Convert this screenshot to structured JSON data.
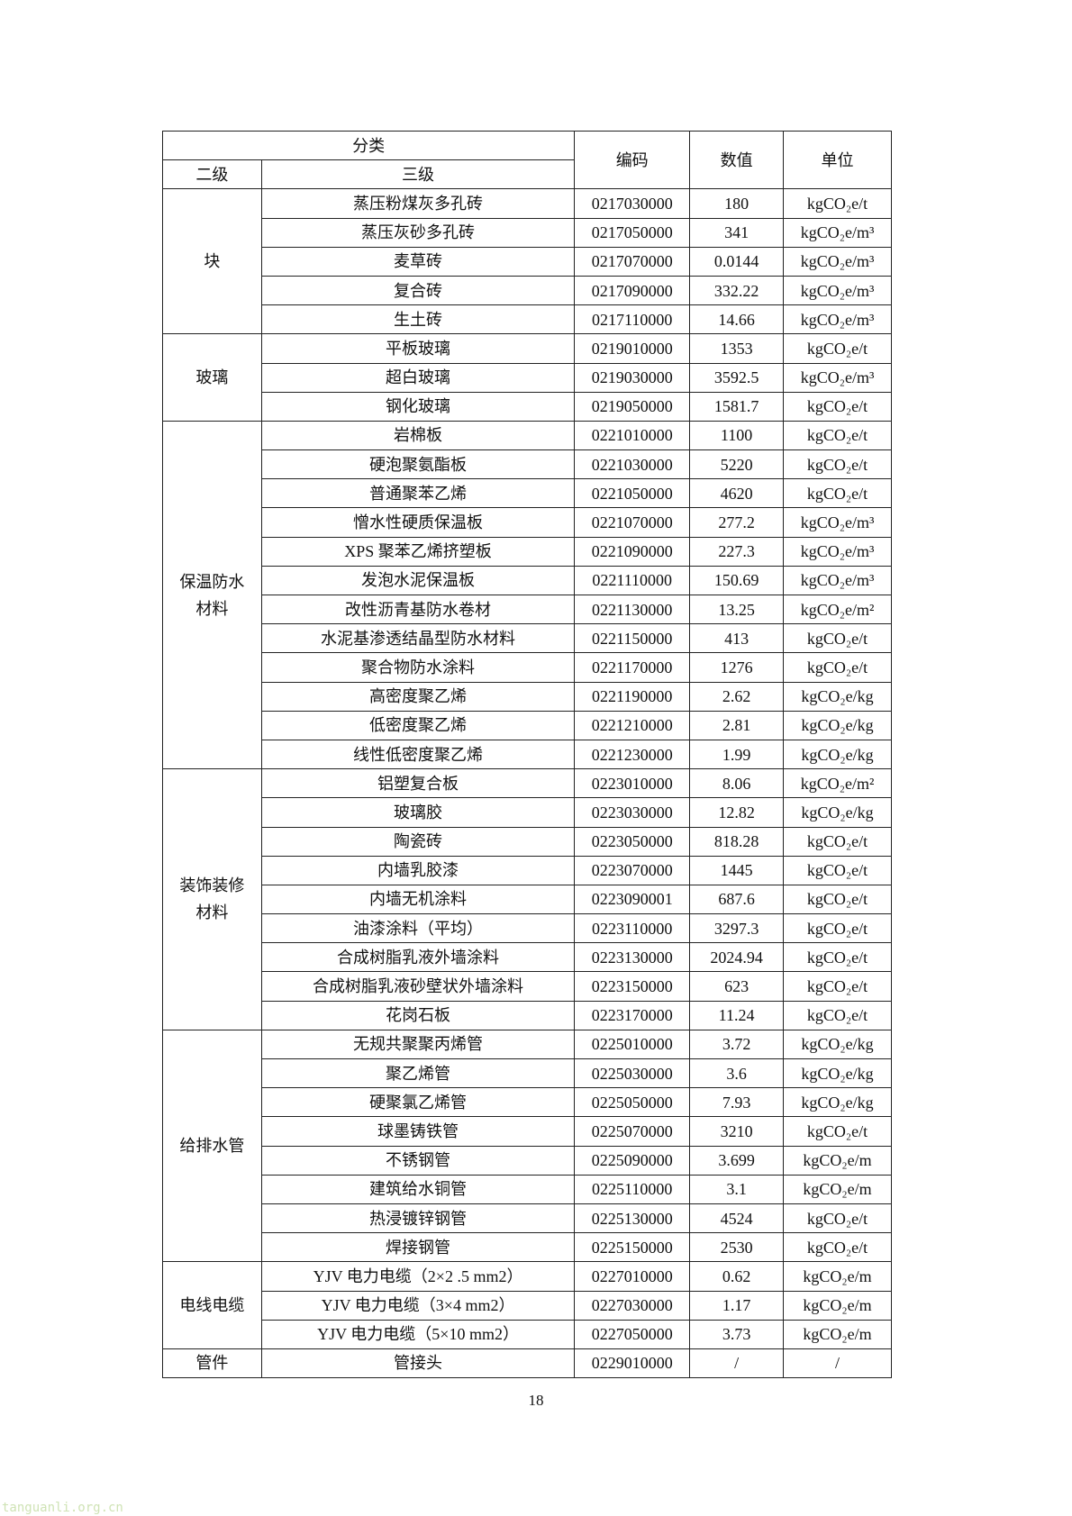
{
  "header": {
    "category": "分类",
    "level2": "二级",
    "level3": "三级",
    "code": "编码",
    "value": "数值",
    "unit": "单位"
  },
  "groups": [
    {
      "name": "块",
      "rows": [
        {
          "item": "蒸压粉煤灰多孔砖",
          "code": "0217030000",
          "value": "180",
          "unit": "kgCO₂e/t"
        },
        {
          "item": "蒸压灰砂多孔砖",
          "code": "0217050000",
          "value": "341",
          "unit": "kgCO₂e/m³"
        },
        {
          "item": "麦草砖",
          "code": "0217070000",
          "value": "0.0144",
          "unit": "kgCO₂e/m³"
        },
        {
          "item": "复合砖",
          "code": "0217090000",
          "value": "332.22",
          "unit": "kgCO₂e/m³"
        },
        {
          "item": "生土砖",
          "code": "0217110000",
          "value": "14.66",
          "unit": "kgCO₂e/m³"
        }
      ]
    },
    {
      "name": "玻璃",
      "rows": [
        {
          "item": "平板玻璃",
          "code": "0219010000",
          "value": "1353",
          "unit": "kgCO₂e/t"
        },
        {
          "item": "超白玻璃",
          "code": "0219030000",
          "value": "3592.5",
          "unit": "kgCO₂e/m³"
        },
        {
          "item": "钢化玻璃",
          "code": "0219050000",
          "value": "1581.7",
          "unit": "kgCO₂e/t"
        }
      ]
    },
    {
      "name": "保温防水材料",
      "rows": [
        {
          "item": "岩棉板",
          "code": "0221010000",
          "value": "1100",
          "unit": "kgCO₂e/t"
        },
        {
          "item": "硬泡聚氨酯板",
          "code": "0221030000",
          "value": "5220",
          "unit": "kgCO₂e/t"
        },
        {
          "item": "普通聚苯乙烯",
          "code": "0221050000",
          "value": "4620",
          "unit": "kgCO₂e/t"
        },
        {
          "item": "憎水性硬质保温板",
          "code": "0221070000",
          "value": "277.2",
          "unit": "kgCO₂e/m³"
        },
        {
          "item": "XPS 聚苯乙烯挤塑板",
          "code": "0221090000",
          "value": "227.3",
          "unit": "kgCO₂e/m³"
        },
        {
          "item": "发泡水泥保温板",
          "code": "0221110000",
          "value": "150.69",
          "unit": "kgCO₂e/m³"
        },
        {
          "item": "改性沥青基防水卷材",
          "code": "0221130000",
          "value": "13.25",
          "unit": "kgCO₂e/m²"
        },
        {
          "item": "水泥基渗透结晶型防水材料",
          "code": "0221150000",
          "value": "413",
          "unit": "kgCO₂e/t"
        },
        {
          "item": "聚合物防水涂料",
          "code": "0221170000",
          "value": "1276",
          "unit": "kgCO₂e/t"
        },
        {
          "item": "高密度聚乙烯",
          "code": "0221190000",
          "value": "2.62",
          "unit": "kgCO₂e/kg"
        },
        {
          "item": "低密度聚乙烯",
          "code": "0221210000",
          "value": "2.81",
          "unit": "kgCO₂e/kg"
        },
        {
          "item": "线性低密度聚乙烯",
          "code": "0221230000",
          "value": "1.99",
          "unit": "kgCO₂e/kg"
        }
      ]
    },
    {
      "name": "装饰装修材料",
      "rows": [
        {
          "item": "铝塑复合板",
          "code": "0223010000",
          "value": "8.06",
          "unit": "kgCO₂e/m²"
        },
        {
          "item": "玻璃胶",
          "code": "0223030000",
          "value": "12.82",
          "unit": "kgCO₂e/kg"
        },
        {
          "item": "陶瓷砖",
          "code": "0223050000",
          "value": "818.28",
          "unit": "kgCO₂e/t"
        },
        {
          "item": "内墙乳胶漆",
          "code": "0223070000",
          "value": "1445",
          "unit": "kgCO₂e/t"
        },
        {
          "item": "内墙无机涂料",
          "code": "0223090001",
          "value": "687.6",
          "unit": "kgCO₂e/t"
        },
        {
          "item": "油漆涂料（平均）",
          "code": "0223110000",
          "value": "3297.3",
          "unit": "kgCO₂e/t"
        },
        {
          "item": "合成树脂乳液外墙涂料",
          "code": "0223130000",
          "value": "2024.94",
          "unit": "kgCO₂e/t"
        },
        {
          "item": "合成树脂乳液砂壁状外墙涂料",
          "code": "0223150000",
          "value": "623",
          "unit": "kgCO₂e/t"
        },
        {
          "item": "花岗石板",
          "code": "0223170000",
          "value": "11.24",
          "unit": "kgCO₂e/t"
        }
      ]
    },
    {
      "name": "给排水管",
      "rows": [
        {
          "item": "无规共聚聚丙烯管",
          "code": "0225010000",
          "value": "3.72",
          "unit": "kgCO₂e/kg"
        },
        {
          "item": "聚乙烯管",
          "code": "0225030000",
          "value": "3.6",
          "unit": "kgCO₂e/kg"
        },
        {
          "item": "硬聚氯乙烯管",
          "code": "0225050000",
          "value": "7.93",
          "unit": "kgCO₂e/kg"
        },
        {
          "item": "球墨铸铁管",
          "code": "0225070000",
          "value": "3210",
          "unit": "kgCO₂e/t"
        },
        {
          "item": "不锈钢管",
          "code": "0225090000",
          "value": "3.699",
          "unit": "kgCO₂e/m"
        },
        {
          "item": "建筑给水铜管",
          "code": "0225110000",
          "value": "3.1",
          "unit": "kgCO₂e/m"
        },
        {
          "item": "热浸镀锌钢管",
          "code": "0225130000",
          "value": "4524",
          "unit": "kgCO₂e/t"
        },
        {
          "item": "焊接钢管",
          "code": "0225150000",
          "value": "2530",
          "unit": "kgCO₂e/t"
        }
      ]
    },
    {
      "name": "电线电缆",
      "rows": [
        {
          "item": "YJV 电力电缆（2×2 .5 mm2）",
          "code": "0227010000",
          "value": "0.62",
          "unit": "kgCO₂e/m"
        },
        {
          "item": "YJV 电力电缆（3×4 mm2）",
          "code": "0227030000",
          "value": "1.17",
          "unit": "kgCO₂e/m"
        },
        {
          "item": "YJV 电力电缆（5×10 mm2）",
          "code": "0227050000",
          "value": "3.73",
          "unit": "kgCO₂e/m"
        }
      ]
    },
    {
      "name": "管件",
      "rows": [
        {
          "item": "管接头",
          "code": "0229010000",
          "value": "/",
          "unit": "/"
        }
      ]
    }
  ],
  "page_number": "18",
  "watermark": "tanguanli.org.cn"
}
